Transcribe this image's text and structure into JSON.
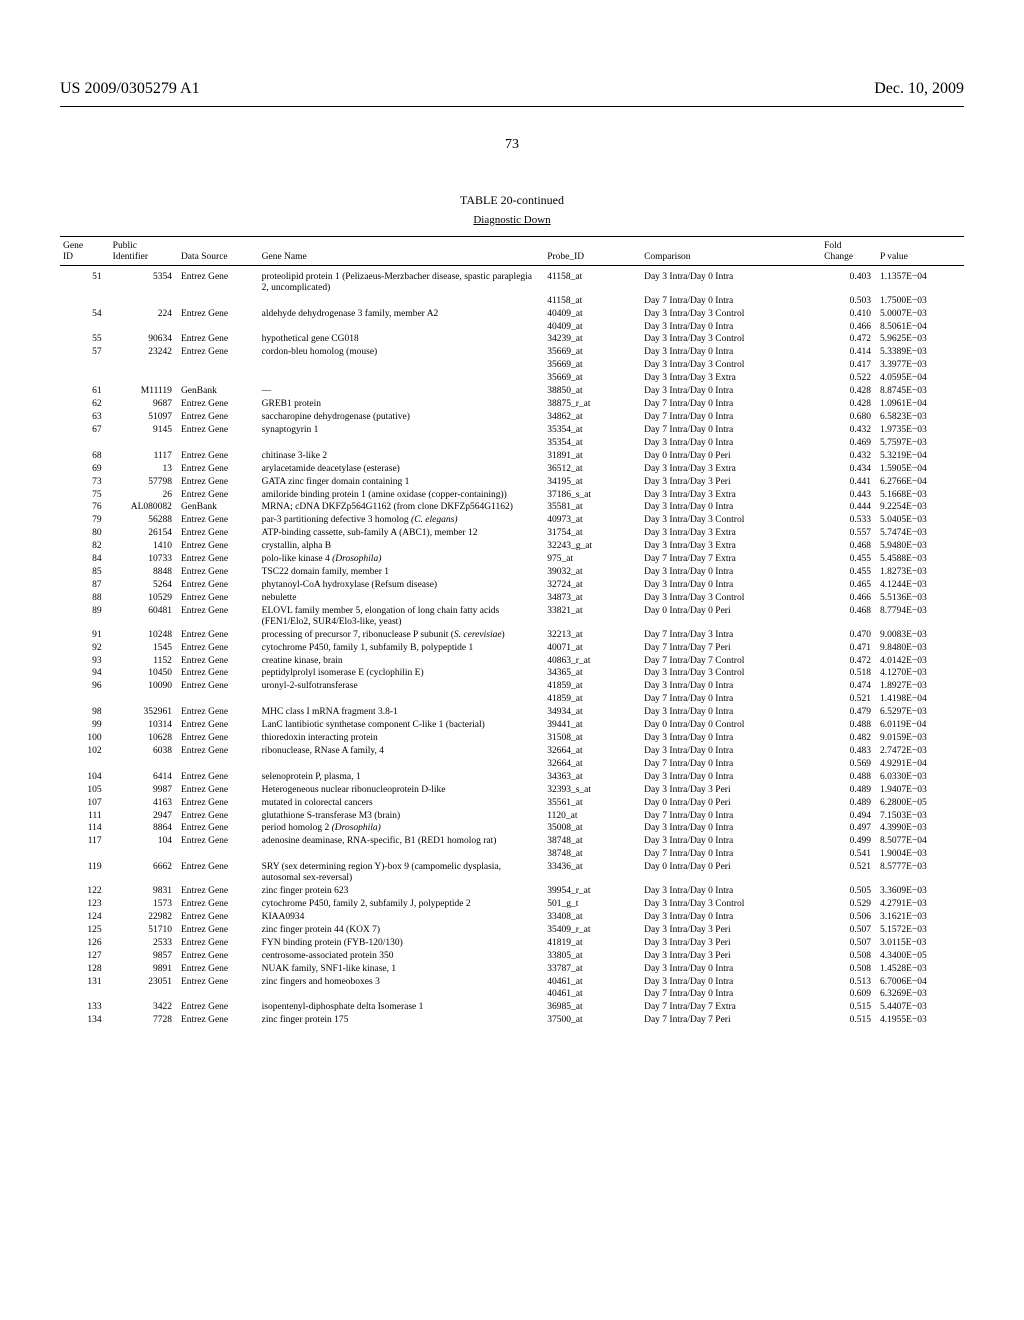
{
  "header": {
    "left": "US 2009/0305279 A1",
    "right": "Dec. 10, 2009"
  },
  "page_number": "73",
  "table": {
    "title": "TABLE 20-continued",
    "subtitle": "Diagnostic Down",
    "columns": [
      "Gene ID",
      "Public Identifier",
      "Data Source",
      "Gene Name",
      "Probe_ID",
      "Comparison",
      "Fold Change",
      "P value"
    ],
    "rows": [
      {
        "g": "51",
        "p": "5354",
        "s": "Entrez Gene",
        "n": "proteolipid protein 1 (Pelizaeus-Merzbacher disease, spastic paraplegia 2, uncomplicated)",
        "pr": "41158_at",
        "c": "Day 3 Intra/Day 0 Intra",
        "f": "0.403",
        "pv": "1.1357E−04"
      },
      {
        "g": "",
        "p": "",
        "s": "",
        "n": "",
        "pr": "41158_at",
        "c": "Day 7 Intra/Day 0 Intra",
        "f": "0.503",
        "pv": "1.7500E−03"
      },
      {
        "g": "54",
        "p": "224",
        "s": "Entrez Gene",
        "n": "aldehyde dehydrogenase 3 family, member A2",
        "pr": "40409_at",
        "c": "Day 3 Intra/Day 3 Control",
        "f": "0.410",
        "pv": "5.0007E−03"
      },
      {
        "g": "",
        "p": "",
        "s": "",
        "n": "",
        "pr": "40409_at",
        "c": "Day 3 Intra/Day 0 Intra",
        "f": "0.466",
        "pv": "8.5061E−04"
      },
      {
        "g": "55",
        "p": "90634",
        "s": "Entrez Gene",
        "n": "hypothetical gene CG018",
        "pr": "34239_at",
        "c": "Day 3 Intra/Day 3 Control",
        "f": "0.472",
        "pv": "5.9625E−03"
      },
      {
        "g": "57",
        "p": "23242",
        "s": "Entrez Gene",
        "n": "cordon-bleu homolog (mouse)",
        "pr": "35669_at",
        "c": "Day 3 Intra/Day 0 Intra",
        "f": "0.414",
        "pv": "5.3389E−03"
      },
      {
        "g": "",
        "p": "",
        "s": "",
        "n": "",
        "pr": "35669_at",
        "c": "Day 3 Intra/Day 3 Control",
        "f": "0.417",
        "pv": "3.3977E−03"
      },
      {
        "g": "",
        "p": "",
        "s": "",
        "n": "",
        "pr": "35669_at",
        "c": "Day 3 Intra/Day 3 Extra",
        "f": "0.522",
        "pv": "4.0595E−04"
      },
      {
        "g": "61",
        "p": "M11119",
        "s": "GenBank",
        "n": "—",
        "pr": "38850_at",
        "c": "Day 3 Intra/Day 0 Intra",
        "f": "0.428",
        "pv": "8.8745E−03"
      },
      {
        "g": "62",
        "p": "9687",
        "s": "Entrez Gene",
        "n": "GREB1 protein",
        "pr": "38875_r_at",
        "c": "Day 7 Intra/Day 0 Intra",
        "f": "0.428",
        "pv": "1.0961E−04"
      },
      {
        "g": "63",
        "p": "51097",
        "s": "Entrez Gene",
        "n": "saccharopine dehydrogenase (putative)",
        "pr": "34862_at",
        "c": "Day 7 Intra/Day 0 Intra",
        "f": "0.680",
        "pv": "6.5823E−03"
      },
      {
        "g": "67",
        "p": "9145",
        "s": "Entrez Gene",
        "n": "synaptogyrin 1",
        "pr": "35354_at",
        "c": "Day 7 Intra/Day 0 Intra",
        "f": "0.432",
        "pv": "1.9735E−03"
      },
      {
        "g": "",
        "p": "",
        "s": "",
        "n": "",
        "pr": "35354_at",
        "c": "Day 3 Intra/Day 0 Intra",
        "f": "0.469",
        "pv": "5.7597E−03"
      },
      {
        "g": "68",
        "p": "1117",
        "s": "Entrez Gene",
        "n": "chitinase 3-like 2",
        "pr": "31891_at",
        "c": "Day 0 Intra/Day 0 Peri",
        "f": "0.432",
        "pv": "5.3219E−04"
      },
      {
        "g": "69",
        "p": "13",
        "s": "Entrez Gene",
        "n": "arylacetamide deacetylase (esterase)",
        "pr": "36512_at",
        "c": "Day 3 Intra/Day 3 Extra",
        "f": "0.434",
        "pv": "1.5905E−04"
      },
      {
        "g": "73",
        "p": "57798",
        "s": "Entrez Gene",
        "n": "GATA zinc finger domain containing 1",
        "pr": "34195_at",
        "c": "Day 3 Intra/Day 3 Peri",
        "f": "0.441",
        "pv": "6.2766E−04"
      },
      {
        "g": "75",
        "p": "26",
        "s": "Entrez Gene",
        "n": "amiloride binding protein 1 (amine oxidase (copper-containing))",
        "pr": "37186_s_at",
        "c": "Day 3 Intra/Day 3 Extra",
        "f": "0.443",
        "pv": "5.1668E−03"
      },
      {
        "g": "76",
        "p": "AL080082",
        "s": "GenBank",
        "n": "MRNA; cDNA DKFZp564G1162 (from clone DKFZp564G1162)",
        "pr": "35581_at",
        "c": "Day 3 Intra/Day 0 Intra",
        "f": "0.444",
        "pv": "9.2254E−03"
      },
      {
        "g": "79",
        "p": "56288",
        "s": "Entrez Gene",
        "n": "par-3 partitioning defective 3 homolog <i>(C. elegans)</i>",
        "pr": "40973_at",
        "c": "Day 3 Intra/Day 3 Control",
        "f": "0.533",
        "pv": "5.0405E−03"
      },
      {
        "g": "80",
        "p": "26154",
        "s": "Entrez Gene",
        "n": "ATP-binding cassette, sub-family A (ABC1), member 12",
        "pr": "31754_at",
        "c": "Day 3 Intra/Day 3 Extra",
        "f": "0.557",
        "pv": "5.7474E−03"
      },
      {
        "g": "82",
        "p": "1410",
        "s": "Entrez Gene",
        "n": "crystallin, alpha B",
        "pr": "32243_g_at",
        "c": "Day 3 Intra/Day 3 Extra",
        "f": "0.468",
        "pv": "5.9480E−03"
      },
      {
        "g": "84",
        "p": "10733",
        "s": "Entrez Gene",
        "n": "polo-like kinase 4 <i>(Drosophila)</i>",
        "pr": "975_at",
        "c": "Day 7 Intra/Day 7 Extra",
        "f": "0.455",
        "pv": "5.4588E−03"
      },
      {
        "g": "85",
        "p": "8848",
        "s": "Entrez Gene",
        "n": "TSC22 domain family, member 1",
        "pr": "39032_at",
        "c": "Day 3 Intra/Day 0 Intra",
        "f": "0.455",
        "pv": "1.8273E−03"
      },
      {
        "g": "87",
        "p": "5264",
        "s": "Entrez Gene",
        "n": "phytanoyl-CoA hydroxylase (Refsum disease)",
        "pr": "32724_at",
        "c": "Day 3 Intra/Day 0 Intra",
        "f": "0.465",
        "pv": "4.1244E−03"
      },
      {
        "g": "88",
        "p": "10529",
        "s": "Entrez Gene",
        "n": "nebulette",
        "pr": "34873_at",
        "c": "Day 3 Intra/Day 3 Control",
        "f": "0.466",
        "pv": "5.5136E−03"
      },
      {
        "g": "89",
        "p": "60481",
        "s": "Entrez Gene",
        "n": "ELOVL family member 5, elongation of long chain fatty acids (FEN1/Elo2, SUR4/Elo3-like, yeast)",
        "pr": "33821_at",
        "c": "Day 0 Intra/Day 0 Peri",
        "f": "0.468",
        "pv": "8.7794E−03"
      },
      {
        "g": "91",
        "p": "10248",
        "s": "Entrez Gene",
        "n": "processing of precursor 7, ribonuclease P subunit (<i>S. cerevisiae</i>)",
        "pr": "32213_at",
        "c": "Day 7 Intra/Day 3 Intra",
        "f": "0.470",
        "pv": "9.0083E−03"
      },
      {
        "g": "92",
        "p": "1545",
        "s": "Entrez Gene",
        "n": "cytochrome P450, family 1, subfamily B, polypeptide 1",
        "pr": "40071_at",
        "c": "Day 7 Intra/Day 7 Peri",
        "f": "0.471",
        "pv": "9.8480E−03"
      },
      {
        "g": "93",
        "p": "1152",
        "s": "Entrez Gene",
        "n": "creatine kinase, brain",
        "pr": "40863_r_at",
        "c": "Day 7 Intra/Day 7 Control",
        "f": "0.472",
        "pv": "4.0142E−03"
      },
      {
        "g": "94",
        "p": "10450",
        "s": "Entrez Gene",
        "n": "peptidylprolyl isomerase E (cyclophilin E)",
        "pr": "34365_at",
        "c": "Day 3 Intra/Day 3 Control",
        "f": "0.518",
        "pv": "4.1270E−03"
      },
      {
        "g": "96",
        "p": "10090",
        "s": "Entrez Gene",
        "n": "uronyl-2-sulfotransferase",
        "pr": "41859_at",
        "c": "Day 3 Intra/Day 0 Intra",
        "f": "0.474",
        "pv": "1.8927E−03"
      },
      {
        "g": "",
        "p": "",
        "s": "",
        "n": "",
        "pr": "41859_at",
        "c": "Day 7 Intra/Day 0 Intra",
        "f": "0.521",
        "pv": "1.4198E−04"
      },
      {
        "g": "98",
        "p": "352961",
        "s": "Entrez Gene",
        "n": "MHC class I mRNA fragment 3.8-1",
        "pr": "34934_at",
        "c": "Day 3 Intra/Day 0 Intra",
        "f": "0.479",
        "pv": "6.5297E−03"
      },
      {
        "g": "99",
        "p": "10314",
        "s": "Entrez Gene",
        "n": "LanC lantibiotic synthetase component C-like 1 (bacterial)",
        "pr": "39441_at",
        "c": "Day 0 Intra/Day 0 Control",
        "f": "0.488",
        "pv": "6.0119E−04"
      },
      {
        "g": "100",
        "p": "10628",
        "s": "Entrez Gene",
        "n": "thioredoxin interacting protein",
        "pr": "31508_at",
        "c": "Day 3 Intra/Day 0 Intra",
        "f": "0.482",
        "pv": "9.0159E−03"
      },
      {
        "g": "102",
        "p": "6038",
        "s": "Entrez Gene",
        "n": "ribonuclease, RNase A family, 4",
        "pr": "32664_at",
        "c": "Day 3 Intra/Day 0 Intra",
        "f": "0.483",
        "pv": "2.7472E−03"
      },
      {
        "g": "",
        "p": "",
        "s": "",
        "n": "",
        "pr": "32664_at",
        "c": "Day 7 Intra/Day 0 Intra",
        "f": "0.569",
        "pv": "4.9291E−04"
      },
      {
        "g": "104",
        "p": "6414",
        "s": "Entrez Gene",
        "n": "selenoprotein P, plasma, 1",
        "pr": "34363_at",
        "c": "Day 3 Intra/Day 0 Intra",
        "f": "0.488",
        "pv": "6.0330E−03"
      },
      {
        "g": "105",
        "p": "9987",
        "s": "Entrez Gene",
        "n": "Heterogeneous nuclear ribonucleoprotein D-like",
        "pr": "32393_s_at",
        "c": "Day 3 Intra/Day 3 Peri",
        "f": "0.489",
        "pv": "1.9407E−03"
      },
      {
        "g": "107",
        "p": "4163",
        "s": "Entrez Gene",
        "n": "mutated in colorectal cancers",
        "pr": "35561_at",
        "c": "Day 0 Intra/Day 0 Peri",
        "f": "0.489",
        "pv": "6.2800E−05"
      },
      {
        "g": "111",
        "p": "2947",
        "s": "Entrez Gene",
        "n": "glutathione S-transferase M3 (brain)",
        "pr": "1120_at",
        "c": "Day 7 Intra/Day 0 Intra",
        "f": "0.494",
        "pv": "7.1503E−03"
      },
      {
        "g": "114",
        "p": "8864",
        "s": "Entrez Gene",
        "n": "period homolog 2 <i>(Drosophila)</i>",
        "pr": "35008_at",
        "c": "Day 3 Intra/Day 0 Intra",
        "f": "0.497",
        "pv": "4.3990E−03"
      },
      {
        "g": "117",
        "p": "104",
        "s": "Entrez Gene",
        "n": "adenosine deaminase, RNA-specific, B1 (RED1 homolog rat)",
        "pr": "38748_at",
        "c": "Day 3 Intra/Day 0 Intra",
        "f": "0.499",
        "pv": "8.5077E−04"
      },
      {
        "g": "",
        "p": "",
        "s": "",
        "n": "",
        "pr": "38748_at",
        "c": "Day 7 Intra/Day 0 Intra",
        "f": "0.541",
        "pv": "1.9004E−03"
      },
      {
        "g": "119",
        "p": "6662",
        "s": "Entrez Gene",
        "n": "SRY (sex determining region Y)-box 9 (campomelic dysplasia, autosomal sex-reversal)",
        "pr": "33436_at",
        "c": "Day 0 Intra/Day 0 Peri",
        "f": "0.521",
        "pv": "8.5777E−03"
      },
      {
        "g": "122",
        "p": "9831",
        "s": "Entrez Gene",
        "n": "zinc finger protein 623",
        "pr": "39954_r_at",
        "c": "Day 3 Intra/Day 0 Intra",
        "f": "0.505",
        "pv": "3.3609E−03"
      },
      {
        "g": "123",
        "p": "1573",
        "s": "Entrez Gene",
        "n": "cytochrome P450, family 2, subfamily J, polypeptide 2",
        "pr": "501_g_t",
        "c": "Day 3 Intra/Day 3 Control",
        "f": "0.529",
        "pv": "4.2791E−03"
      },
      {
        "g": "124",
        "p": "22982",
        "s": "Entrez Gene",
        "n": "KIAA0934",
        "pr": "33408_at",
        "c": "Day 3 Intra/Day 0 Intra",
        "f": "0.506",
        "pv": "3.1621E−03"
      },
      {
        "g": "125",
        "p": "51710",
        "s": "Entrez Gene",
        "n": "zinc finger protein 44 (KOX 7)",
        "pr": "35409_r_at",
        "c": "Day 3 Intra/Day 3 Peri",
        "f": "0.507",
        "pv": "5.1572E−03"
      },
      {
        "g": "126",
        "p": "2533",
        "s": "Entrez Gene",
        "n": "FYN binding protein (FYB-120/130)",
        "pr": "41819_at",
        "c": "Day 3 Intra/Day 3 Peri",
        "f": "0.507",
        "pv": "3.0115E−03"
      },
      {
        "g": "127",
        "p": "9857",
        "s": "Entrez Gene",
        "n": "centrosome-associated protein 350",
        "pr": "33805_at",
        "c": "Day 3 Intra/Day 3 Peri",
        "f": "0.508",
        "pv": "4.3400E−05"
      },
      {
        "g": "128",
        "p": "9891",
        "s": "Entrez Gene",
        "n": "NUAK family, SNF1-like kinase, 1",
        "pr": "33787_at",
        "c": "Day 3 Intra/Day 0 Intra",
        "f": "0.508",
        "pv": "1.4528E−03"
      },
      {
        "g": "131",
        "p": "23051",
        "s": "Entrez Gene",
        "n": "zinc fingers and homeoboxes 3",
        "pr": "40461_at",
        "c": "Day 3 Intra/Day 0 Intra",
        "f": "0.513",
        "pv": "6.7006E−04"
      },
      {
        "g": "",
        "p": "",
        "s": "",
        "n": "",
        "pr": "40461_at",
        "c": "Day 7 Intra/Day 0 Intra",
        "f": "0.609",
        "pv": "6.3269E−03"
      },
      {
        "g": "133",
        "p": "3422",
        "s": "Entrez Gene",
        "n": "isopentenyl-diphosphate delta Isomerase 1",
        "pr": "36985_at",
        "c": "Day 7 Intra/Day 7 Extra",
        "f": "0.515",
        "pv": "5.4407E−03"
      },
      {
        "g": "134",
        "p": "7728",
        "s": "Entrez Gene",
        "n": "zinc finger protein 175",
        "pr": "37500_at",
        "c": "Day 7 Intra/Day 7 Peri",
        "f": "0.515",
        "pv": "4.1955E−03"
      }
    ]
  }
}
